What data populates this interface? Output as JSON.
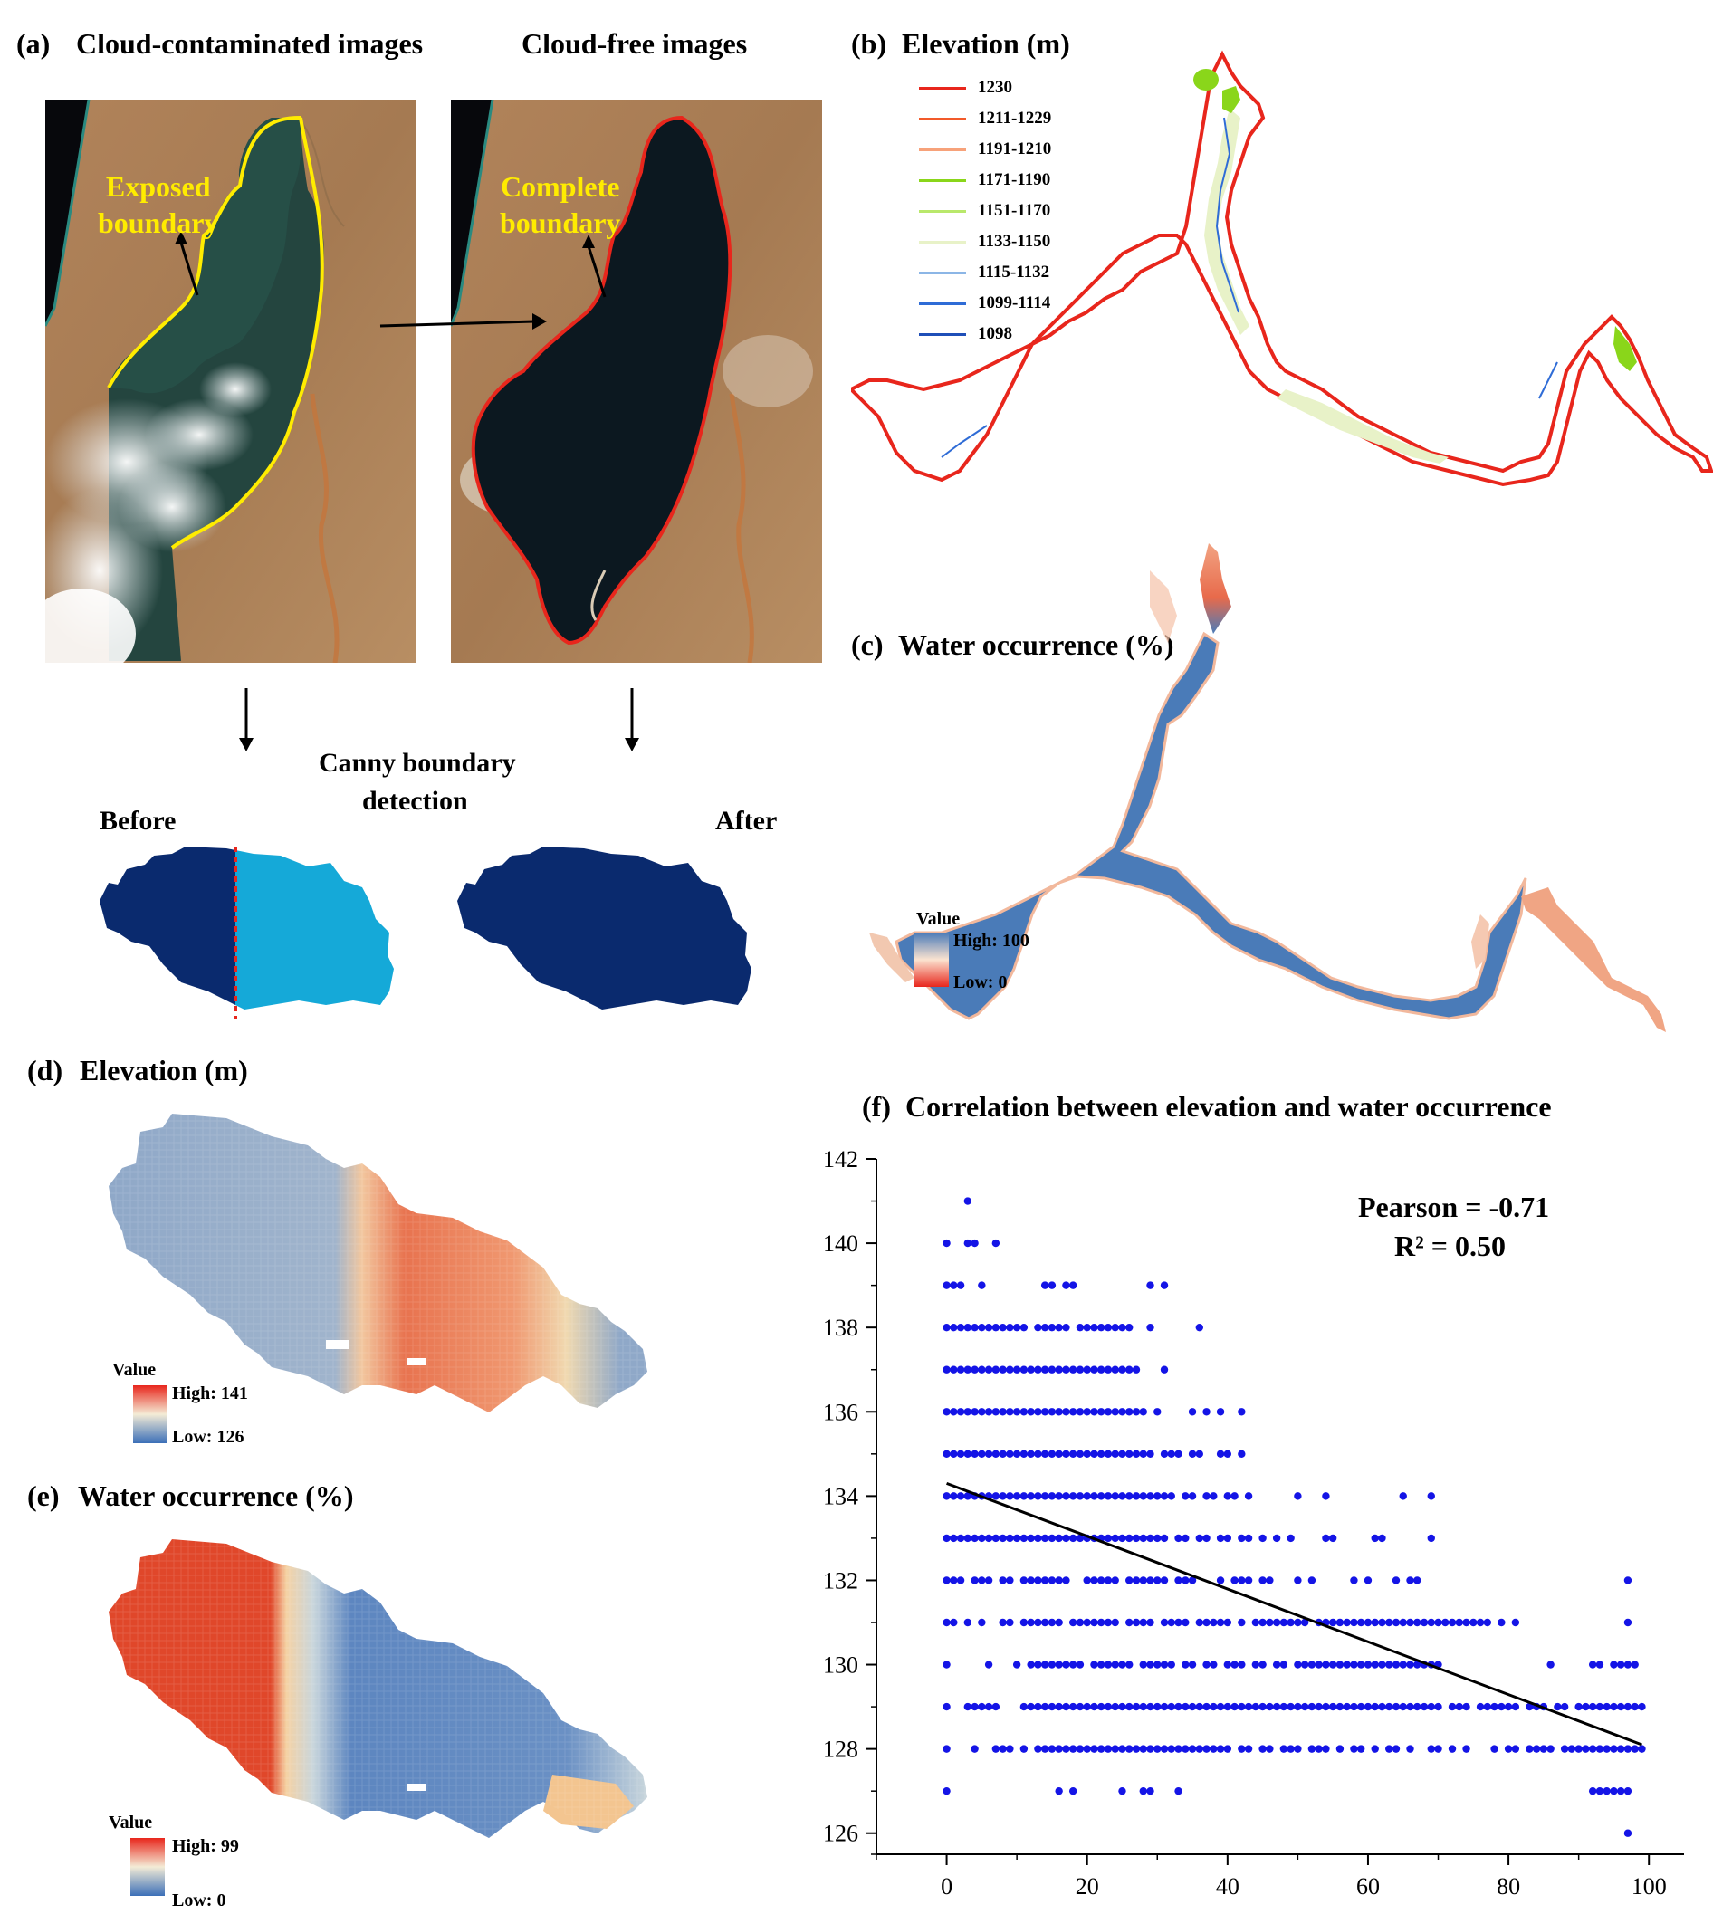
{
  "panel_a": {
    "tag": "(a)",
    "left_title": "Cloud-contaminated images",
    "right_title": "Cloud-free images",
    "left_annotation": [
      "Exposed",
      "boundary"
    ],
    "right_annotation": [
      "Complete",
      "boundary"
    ],
    "method_label": [
      "Canny boundary",
      "detection"
    ],
    "before_label": "Before",
    "after_label": "After"
  },
  "panel_b": {
    "tag": "(b)",
    "title": "Elevation (m)",
    "legend": [
      {
        "label": "1230",
        "color": "#e8261c"
      },
      {
        "label": "1211-1229",
        "color": "#f25a2a"
      },
      {
        "label": "1191-1210",
        "color": "#f7a27a"
      },
      {
        "label": "1171-1190",
        "color": "#8ad61a"
      },
      {
        "label": "1151-1170",
        "color": "#b9e86b"
      },
      {
        "label": "1133-1150",
        "color": "#e8f2c8"
      },
      {
        "label": "1115-1132",
        "color": "#8cb6e6"
      },
      {
        "label": "1099-1114",
        "color": "#2f6cd6"
      },
      {
        "label": "1098",
        "color": "#1f4fb8"
      }
    ]
  },
  "panel_c": {
    "tag": "(c)",
    "title": "Water occurrence (%)",
    "legend_title": "Value",
    "high": "High: 100",
    "low": "Low: 0"
  },
  "panel_d": {
    "tag": "(d)",
    "title": "Elevation (m)",
    "legend_title": "Value",
    "high": "High: 141",
    "low": "Low: 126"
  },
  "panel_e": {
    "tag": "(e)",
    "title": "Water occurrence (%)",
    "legend_title": "Value",
    "high": "High: 99",
    "low": "Low: 0"
  },
  "panel_f": {
    "tag": "(f)",
    "title": "Correlation between elevation and water occurrence",
    "stat_pearson": "Pearson = -0.71",
    "stat_r2": "R² = 0.50"
  },
  "colors": {
    "dark_blue": "#0a2a6e",
    "light_blue": "#15a9d8",
    "red_boundary": "#e8261c",
    "yellow_boundary": "#ffec00",
    "point_blue": "#1414e6"
  },
  "chart_data": {
    "type": "scatter",
    "title": "Correlation between elevation and water occurrence",
    "xlabel": "",
    "ylabel": "",
    "xlim": [
      -10,
      105
    ],
    "ylim": [
      125.5,
      142
    ],
    "xticks": [
      0,
      20,
      40,
      60,
      80,
      100
    ],
    "yticks": [
      126,
      128,
      130,
      132,
      134,
      136,
      138,
      140,
      142
    ],
    "trendline": {
      "x": [
        0,
        99
      ],
      "y": [
        134.3,
        128.1
      ]
    },
    "annotations": [
      "Pearson = -0.71",
      "R² = 0.50"
    ],
    "rows": [
      {
        "y": 141,
        "x": [
          3
        ]
      },
      {
        "y": 140,
        "x": [
          0,
          3,
          4,
          7
        ]
      },
      {
        "y": 139,
        "x": [
          0,
          1,
          2,
          5,
          14,
          15,
          17,
          18,
          29,
          31
        ]
      },
      {
        "y": 138,
        "x": [
          0,
          1,
          2,
          3,
          4,
          5,
          6,
          7,
          8,
          9,
          10,
          11,
          13,
          14,
          15,
          16,
          17,
          19,
          20,
          21,
          22,
          23,
          24,
          25,
          26,
          29,
          36
        ]
      },
      {
        "y": 137,
        "x": [
          0,
          1,
          2,
          3,
          4,
          5,
          6,
          7,
          8,
          9,
          10,
          11,
          12,
          13,
          14,
          15,
          16,
          17,
          18,
          19,
          20,
          21,
          22,
          23,
          24,
          25,
          26,
          27,
          31
        ]
      },
      {
        "y": 136,
        "x": [
          0,
          1,
          2,
          3,
          4,
          5,
          6,
          7,
          8,
          9,
          10,
          11,
          12,
          13,
          14,
          15,
          16,
          17,
          18,
          19,
          20,
          21,
          22,
          23,
          24,
          25,
          26,
          27,
          28,
          30,
          35,
          37,
          39,
          42
        ]
      },
      {
        "y": 135,
        "x": [
          0,
          1,
          2,
          3,
          4,
          5,
          6,
          7,
          8,
          9,
          10,
          11,
          12,
          13,
          14,
          15,
          16,
          17,
          18,
          19,
          20,
          21,
          22,
          23,
          24,
          25,
          26,
          27,
          28,
          29,
          31,
          32,
          33,
          35,
          36,
          39,
          40,
          42
        ]
      },
      {
        "y": 134,
        "x": [
          0,
          1,
          2,
          3,
          4,
          5,
          6,
          7,
          8,
          9,
          10,
          11,
          12,
          13,
          14,
          15,
          16,
          17,
          18,
          19,
          20,
          21,
          22,
          23,
          24,
          25,
          26,
          27,
          28,
          29,
          30,
          31,
          32,
          34,
          35,
          37,
          38,
          40,
          41,
          43,
          50,
          54,
          65,
          69
        ]
      },
      {
        "y": 133,
        "x": [
          0,
          1,
          2,
          3,
          4,
          5,
          6,
          7,
          8,
          9,
          10,
          11,
          12,
          13,
          14,
          15,
          16,
          17,
          18,
          19,
          20,
          21,
          22,
          23,
          24,
          25,
          26,
          27,
          28,
          29,
          30,
          31,
          33,
          34,
          36,
          37,
          39,
          40,
          42,
          43,
          45,
          47,
          49,
          54,
          55,
          61,
          62,
          69
        ]
      },
      {
        "y": 132,
        "x": [
          0,
          1,
          2,
          4,
          5,
          6,
          8,
          9,
          11,
          12,
          13,
          14,
          15,
          16,
          17,
          20,
          21,
          22,
          23,
          24,
          26,
          27,
          28,
          29,
          30,
          31,
          33,
          34,
          35,
          39,
          41,
          42,
          43,
          45,
          46,
          50,
          52,
          58,
          60,
          64,
          66,
          67,
          97
        ]
      },
      {
        "y": 131,
        "x": [
          0,
          1,
          3,
          5,
          8,
          9,
          11,
          12,
          13,
          14,
          15,
          16,
          18,
          19,
          20,
          21,
          22,
          23,
          24,
          26,
          27,
          28,
          29,
          31,
          32,
          33,
          34,
          36,
          37,
          38,
          39,
          40,
          42,
          44,
          45,
          46,
          47,
          48,
          49,
          50,
          51,
          53,
          54,
          55,
          56,
          57,
          58,
          59,
          60,
          61,
          62,
          63,
          64,
          65,
          66,
          67,
          68,
          69,
          70,
          71,
          72,
          73,
          74,
          75,
          76,
          77,
          79,
          81,
          97
        ]
      },
      {
        "y": 130,
        "x": [
          0,
          6,
          10,
          12,
          13,
          14,
          15,
          16,
          17,
          18,
          19,
          21,
          22,
          23,
          24,
          25,
          26,
          28,
          29,
          30,
          31,
          32,
          34,
          35,
          37,
          38,
          40,
          41,
          42,
          44,
          45,
          47,
          48,
          50,
          51,
          52,
          53,
          54,
          55,
          56,
          57,
          58,
          59,
          60,
          61,
          62,
          63,
          64,
          65,
          66,
          67,
          68,
          69,
          70,
          86,
          92,
          93,
          95,
          96,
          97,
          98
        ]
      },
      {
        "y": 129,
        "x": [
          0,
          3,
          4,
          5,
          6,
          7,
          11,
          12,
          13,
          14,
          15,
          16,
          17,
          18,
          19,
          20,
          21,
          22,
          23,
          24,
          25,
          26,
          27,
          28,
          29,
          30,
          31,
          32,
          33,
          34,
          35,
          36,
          37,
          38,
          39,
          40,
          41,
          42,
          43,
          44,
          45,
          46,
          47,
          48,
          49,
          50,
          51,
          52,
          53,
          54,
          55,
          56,
          57,
          58,
          59,
          60,
          61,
          62,
          63,
          64,
          65,
          66,
          67,
          68,
          69,
          70,
          72,
          73,
          74,
          76,
          77,
          78,
          79,
          80,
          81,
          83,
          84,
          85,
          87,
          88,
          90,
          91,
          92,
          93,
          94,
          95,
          96,
          97,
          98,
          99
        ]
      },
      {
        "y": 128,
        "x": [
          0,
          4,
          7,
          8,
          9,
          11,
          13,
          14,
          15,
          16,
          17,
          18,
          19,
          20,
          21,
          22,
          23,
          24,
          25,
          26,
          27,
          28,
          29,
          30,
          31,
          32,
          33,
          34,
          35,
          36,
          37,
          38,
          39,
          40,
          42,
          43,
          45,
          46,
          48,
          49,
          50,
          52,
          53,
          54,
          56,
          58,
          59,
          61,
          63,
          64,
          66,
          69,
          70,
          72,
          74,
          78,
          80,
          81,
          83,
          84,
          85,
          86,
          88,
          89,
          90,
          91,
          92,
          93,
          94,
          95,
          96,
          97,
          98,
          99
        ]
      },
      {
        "y": 127,
        "x": [
          0,
          16,
          18,
          25,
          28,
          29,
          33,
          92,
          93,
          94,
          95,
          96,
          97
        ]
      },
      {
        "y": 126,
        "x": [
          97
        ]
      }
    ]
  }
}
